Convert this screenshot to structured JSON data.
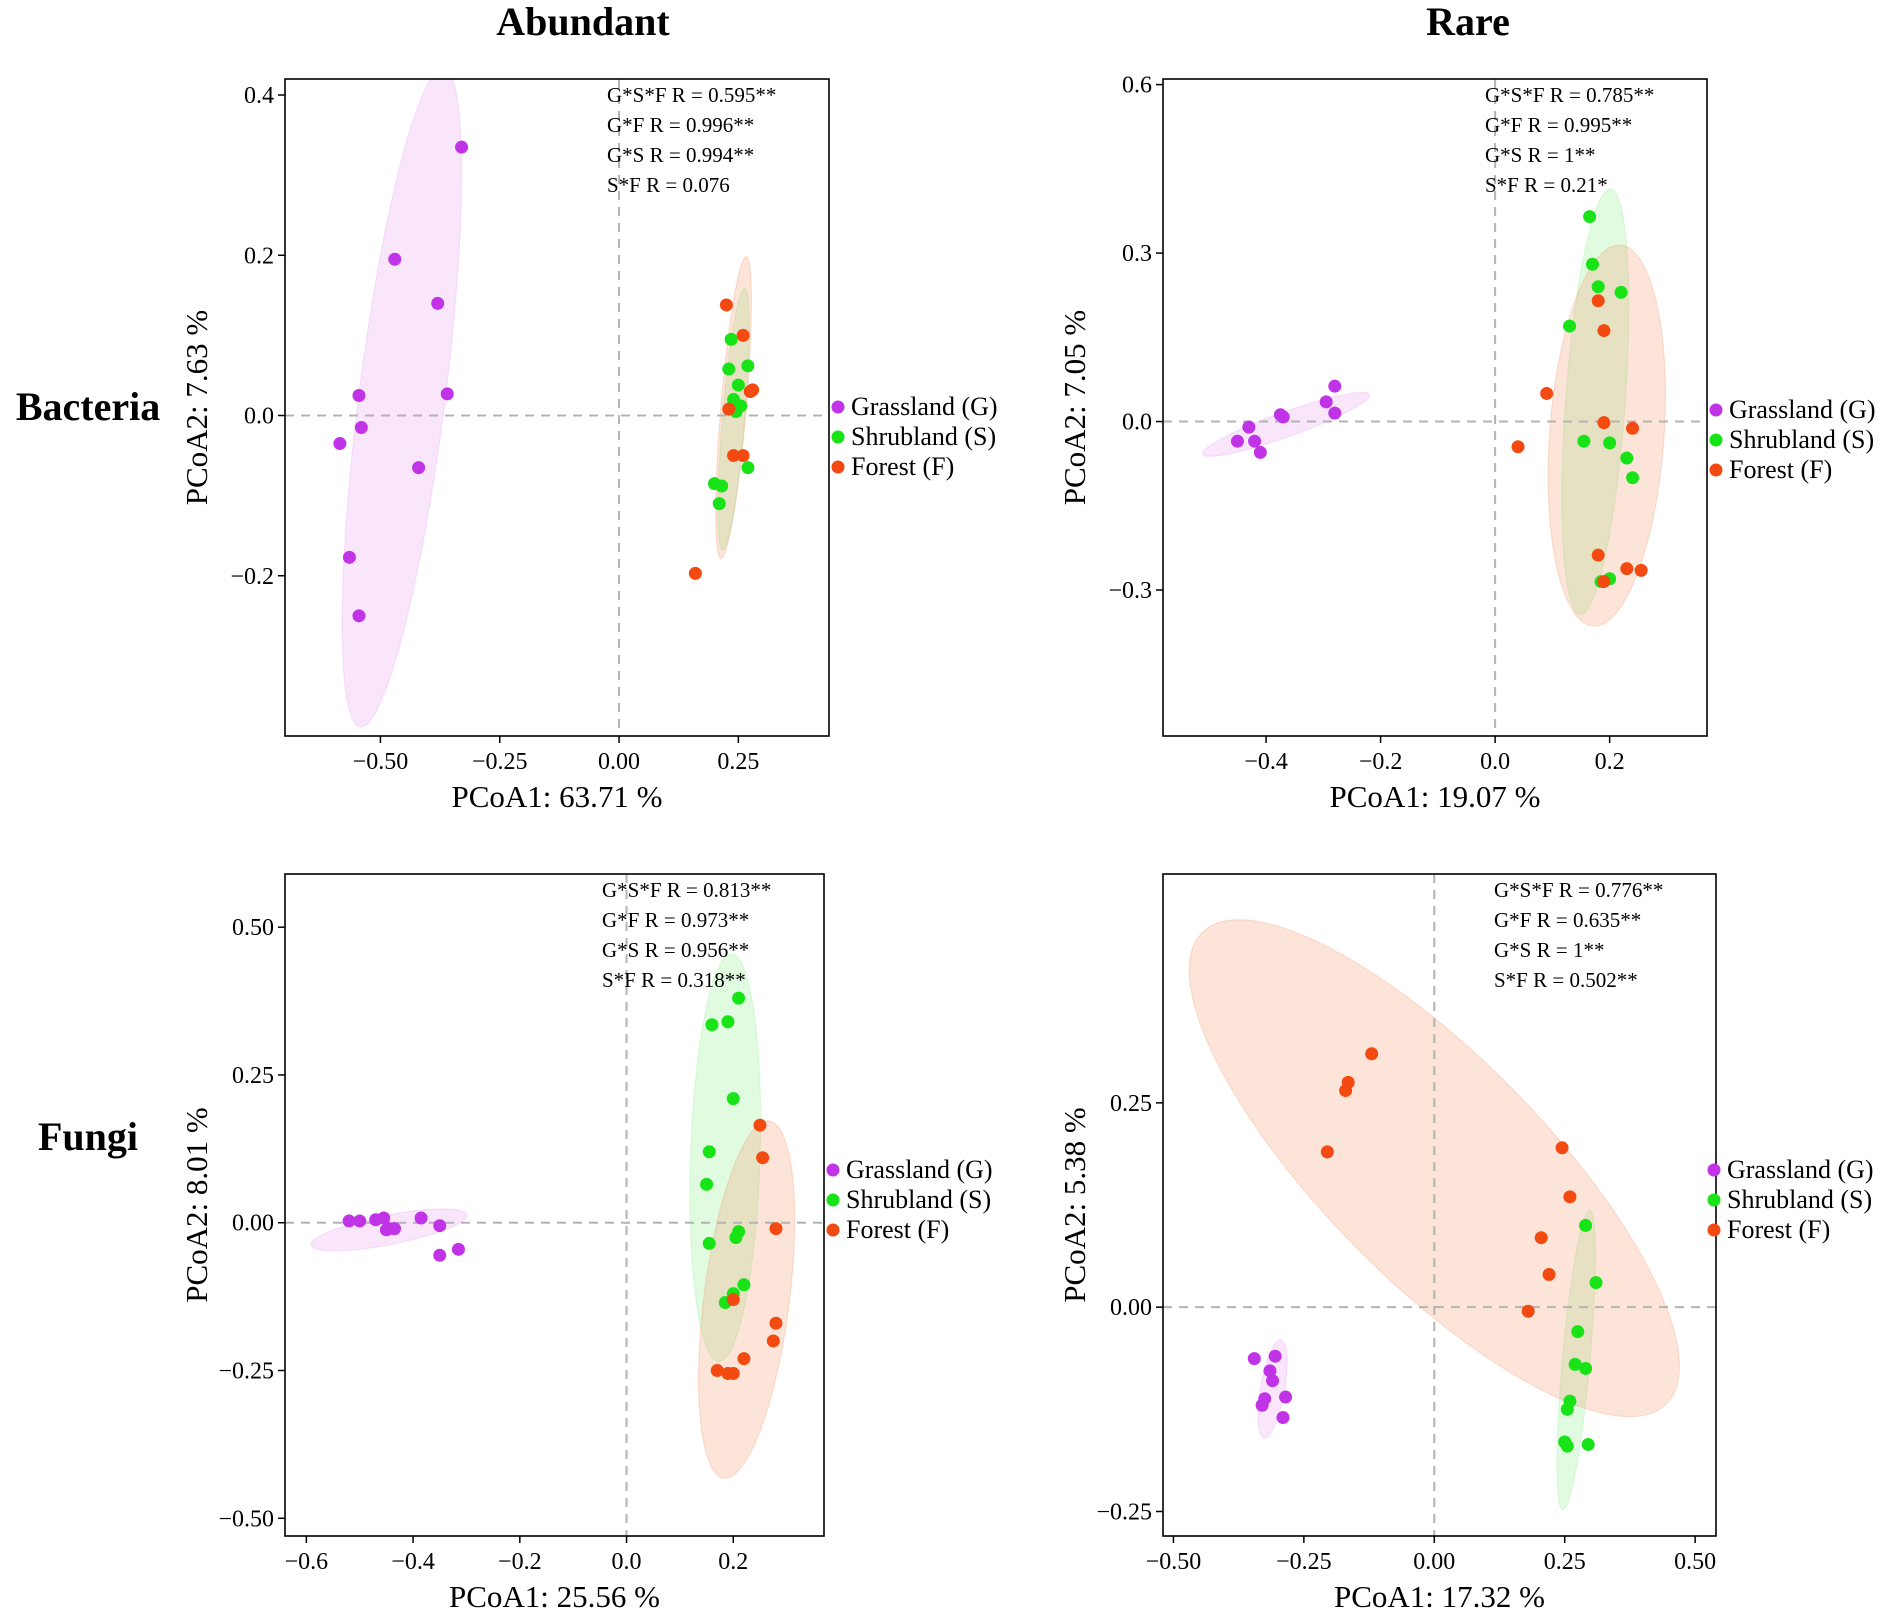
{
  "figure": {
    "col_titles": [
      "Abundant",
      "Rare"
    ],
    "row_titles": [
      "Bacteria",
      "Fungi"
    ]
  },
  "colors": {
    "Grassland": "#c033e6",
    "Shrubland": "#17e317",
    "Forest": "#f24a10",
    "Grassland_fill": "rgba(232,150,240,0.24)",
    "Shrubland_fill": "rgba(120,235,120,0.22)",
    "Forest_fill": "rgba(245,150,110,0.26)"
  },
  "chart_data": [
    {
      "type": "scatter",
      "id": "bacteria-abundant",
      "xlabel": "PCoA1:  63.71 %",
      "ylabel": "PCoA2:  7.63 %",
      "xlim": [
        -0.7,
        0.44
      ],
      "ylim": [
        -0.4,
        0.42
      ],
      "xticks": [
        -0.5,
        -0.25,
        0.0,
        0.25
      ],
      "xtick_labels": [
        "−0.50",
        "−0.25",
        "0.00",
        "0.25"
      ],
      "yticks": [
        -0.2,
        0.0,
        0.2,
        0.4
      ],
      "ytick_labels": [
        "−0.2",
        "0.0",
        "0.2",
        "0.4"
      ],
      "annotations": [
        "G*S*F  R = 0.595**",
        "G*F  R = 0.996**",
        "G*S  R = 0.994**",
        "S*F  R = 0.076"
      ],
      "legend": [
        "Grassland (G)",
        "Shrubland (S)",
        "Forest  (F)"
      ],
      "series": [
        {
          "name": "Grassland",
          "x": [
            -0.33,
            -0.47,
            -0.38,
            -0.545,
            -0.36,
            -0.54,
            -0.585,
            -0.42,
            -0.565,
            -0.545
          ],
          "y": [
            0.335,
            0.195,
            0.14,
            0.025,
            0.027,
            -0.015,
            -0.035,
            -0.065,
            -0.177,
            -0.25
          ],
          "ellipse": {
            "cx": -0.455,
            "cy": 0.022,
            "rx": 0.42,
            "ry": 0.087,
            "angle": 78
          }
        },
        {
          "name": "Shrubland",
          "x": [
            0.235,
            0.27,
            0.23,
            0.25,
            0.24,
            0.255,
            0.245,
            0.27,
            0.2,
            0.215,
            0.21
          ],
          "y": [
            0.095,
            0.062,
            0.058,
            0.038,
            0.02,
            0.012,
            0.005,
            -0.065,
            -0.085,
            -0.088,
            -0.11
          ],
          "ellipse": {
            "cx": 0.24,
            "cy": -0.005,
            "rx": 0.165,
            "ry": 0.023,
            "angle": 82
          }
        },
        {
          "name": "Forest",
          "x": [
            0.225,
            0.26,
            0.28,
            0.275,
            0.23,
            0.24,
            0.26,
            0.16
          ],
          "y": [
            0.138,
            0.1,
            0.032,
            0.03,
            0.008,
            -0.05,
            -0.05,
            -0.197
          ],
          "ellipse": {
            "cx": 0.24,
            "cy": 0.01,
            "rx": 0.19,
            "ry": 0.026,
            "angle": 82
          }
        }
      ]
    },
    {
      "type": "scatter",
      "id": "bacteria-rare",
      "xlabel": "PCoA1:  19.07 %",
      "ylabel": "PCoA2:  7.05 %",
      "xlim": [
        -0.58,
        0.37
      ],
      "ylim": [
        -0.56,
        0.61
      ],
      "xticks": [
        -0.4,
        -0.2,
        0.0,
        0.2
      ],
      "xtick_labels": [
        "−0.4",
        "−0.2",
        "0.0",
        "0.2"
      ],
      "yticks": [
        -0.3,
        0.0,
        0.3,
        0.6
      ],
      "ytick_labels": [
        "−0.3",
        "0.0",
        "0.3",
        "0.6"
      ],
      "annotations": [
        "G*S*F  R = 0.785**",
        "G*F  R = 0.995**",
        "G*S   R = 1**",
        "S*F   R = 0.21*"
      ],
      "legend": [
        "Grassland (G)",
        "Shrubland (S)",
        "Forest  (F)"
      ],
      "series": [
        {
          "name": "Grassland",
          "x": [
            -0.28,
            -0.295,
            -0.28,
            -0.375,
            -0.37,
            -0.43,
            -0.45,
            -0.42,
            -0.41
          ],
          "y": [
            0.063,
            0.035,
            0.015,
            0.012,
            0.008,
            -0.01,
            -0.035,
            -0.035,
            -0.055
          ],
          "ellipse": {
            "cx": -0.365,
            "cy": -0.005,
            "rx": 0.155,
            "ry": 0.022,
            "angle": 20
          }
        },
        {
          "name": "Shrubland",
          "x": [
            0.165,
            0.17,
            0.18,
            0.22,
            0.13,
            0.155,
            0.2,
            0.23,
            0.24,
            0.2,
            0.185
          ],
          "y": [
            0.365,
            0.28,
            0.24,
            0.23,
            0.17,
            -0.035,
            -0.038,
            -0.065,
            -0.1,
            -0.28,
            -0.285
          ],
          "ellipse": {
            "cx": 0.175,
            "cy": 0.035,
            "rx": 0.38,
            "ry": 0.052,
            "angle": 86
          }
        },
        {
          "name": "Forest",
          "x": [
            0.18,
            0.19,
            0.09,
            0.19,
            0.24,
            0.04,
            0.18,
            0.23,
            0.255,
            0.19
          ],
          "y": [
            0.215,
            0.162,
            0.05,
            -0.002,
            -0.012,
            -0.045,
            -0.238,
            -0.262,
            -0.265,
            -0.285
          ],
          "ellipse": {
            "cx": 0.195,
            "cy": -0.025,
            "rx": 0.34,
            "ry": 0.1,
            "angle": 86
          }
        }
      ]
    },
    {
      "type": "scatter",
      "id": "fungi-abundant",
      "xlabel": "PCoA1:  25.56 %",
      "ylabel": "PCoA2:  8.01 %",
      "xlim": [
        -0.64,
        0.37
      ],
      "ylim": [
        -0.53,
        0.59
      ],
      "xticks": [
        -0.6,
        -0.4,
        -0.2,
        0.0,
        0.2
      ],
      "xtick_labels": [
        "−0.6",
        "−0.4",
        "−0.2",
        "0.0",
        "0.2"
      ],
      "yticks": [
        -0.5,
        -0.25,
        0.0,
        0.25,
        0.5
      ],
      "ytick_labels": [
        "−0.50",
        "−0.25",
        "0.00",
        "0.25",
        "0.50"
      ],
      "annotations": [
        "G*S*F   R = 0.813**",
        "G*F   R = 0.973**",
        "G*S    R = 0.956**",
        "S*F  R = 0.318**"
      ],
      "legend": [
        "Grassland (G)",
        "Shrubland (S)",
        "Forest  (F)"
      ],
      "series": [
        {
          "name": "Grassland",
          "x": [
            -0.52,
            -0.5,
            -0.47,
            -0.455,
            -0.445,
            -0.435,
            -0.385,
            -0.35,
            -0.45,
            -0.435,
            -0.315,
            -0.35
          ],
          "y": [
            0.003,
            0.003,
            0.005,
            0.008,
            -0.01,
            -0.01,
            0.008,
            -0.005,
            -0.012,
            -0.01,
            -0.045,
            -0.055
          ],
          "ellipse": {
            "cx": -0.445,
            "cy": -0.012,
            "rx": 0.148,
            "ry": 0.025,
            "angle": 10
          }
        },
        {
          "name": "Shrubland",
          "x": [
            0.21,
            0.16,
            0.19,
            0.2,
            0.155,
            0.15,
            0.21,
            0.205,
            0.155,
            0.22,
            0.2,
            0.185,
            0.19
          ],
          "y": [
            0.38,
            0.335,
            0.34,
            0.21,
            0.12,
            0.065,
            -0.015,
            -0.025,
            -0.035,
            -0.105,
            -0.12,
            -0.135,
            -0.255
          ],
          "ellipse": {
            "cx": 0.185,
            "cy": 0.11,
            "rx": 0.345,
            "ry": 0.065,
            "angle": 88
          }
        },
        {
          "name": "Forest",
          "x": [
            0.25,
            0.255,
            0.28,
            0.2,
            0.28,
            0.275,
            0.22,
            0.17,
            0.19,
            0.2
          ],
          "y": [
            0.165,
            0.11,
            -0.01,
            -0.13,
            -0.17,
            -0.2,
            -0.23,
            -0.25,
            -0.255,
            -0.255
          ],
          "ellipse": {
            "cx": 0.225,
            "cy": -0.13,
            "rx": 0.305,
            "ry": 0.08,
            "angle": 82
          }
        }
      ]
    },
    {
      "type": "scatter",
      "id": "fungi-rare",
      "xlabel": "PCoA1:  17.32 %",
      "ylabel": "PCoA2:  5.38 %",
      "xlim": [
        -0.52,
        0.54
      ],
      "ylim": [
        -0.28,
        0.53
      ],
      "xticks": [
        -0.5,
        -0.25,
        0.0,
        0.25,
        0.5
      ],
      "xtick_labels": [
        "−0.50",
        "−0.25",
        "0.00",
        "0.25",
        "0.50"
      ],
      "yticks": [
        -0.25,
        0.0,
        0.25
      ],
      "ytick_labels": [
        "−0.25",
        "0.00",
        "0.25"
      ],
      "annotations": [
        "G*S*F   R = 0.776**",
        "G*F   R = 0.635**",
        "G*S   R = 1**",
        "S*F   R = 0.502**"
      ],
      "legend": [
        "Grassland (G)",
        "Shrubland (S)",
        "Forest  (F)"
      ],
      "series": [
        {
          "name": "Grassland",
          "x": [
            -0.345,
            -0.305,
            -0.315,
            -0.31,
            -0.285,
            -0.325,
            -0.33,
            -0.29
          ],
          "y": [
            -0.063,
            -0.06,
            -0.078,
            -0.09,
            -0.11,
            -0.112,
            -0.12,
            -0.135
          ],
          "ellipse": {
            "cx": -0.31,
            "cy": -0.1,
            "rx": 0.062,
            "ry": 0.022,
            "angle": 75
          }
        },
        {
          "name": "Shrubland",
          "x": [
            0.29,
            0.31,
            0.275,
            0.27,
            0.29,
            0.26,
            0.255,
            0.25,
            0.255,
            0.295
          ],
          "y": [
            0.1,
            0.03,
            -0.03,
            -0.07,
            -0.075,
            -0.115,
            -0.125,
            -0.165,
            -0.17,
            -0.168
          ],
          "ellipse": {
            "cx": 0.272,
            "cy": -0.065,
            "rx": 0.185,
            "ry": 0.026,
            "angle": 82
          }
        },
        {
          "name": "Forest",
          "x": [
            -0.12,
            -0.165,
            -0.17,
            -0.205,
            0.245,
            0.26,
            0.205,
            0.22,
            0.18
          ],
          "y": [
            0.31,
            0.275,
            0.265,
            0.19,
            0.195,
            0.135,
            0.085,
            0.04,
            -0.005
          ],
          "ellipse": {
            "cx": 0.0,
            "cy": 0.17,
            "rx": 0.53,
            "ry": 0.15,
            "angle": -33
          }
        }
      ]
    }
  ]
}
